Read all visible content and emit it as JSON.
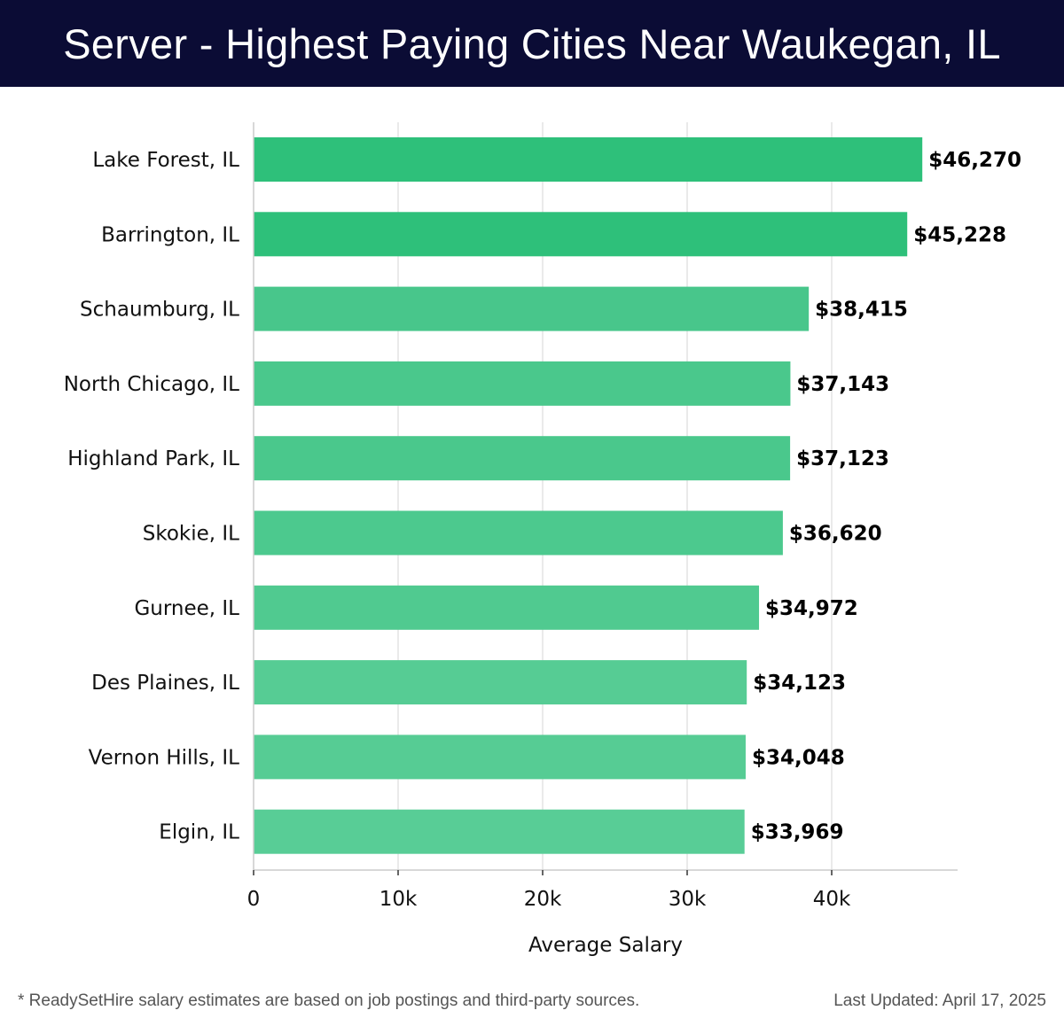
{
  "header": {
    "title": "Server - Highest Paying Cities Near Waukegan, IL"
  },
  "chart_data": {
    "type": "bar",
    "orientation": "horizontal",
    "title": "Server - Highest Paying Cities Near Waukegan, IL",
    "xlabel": "Average Salary",
    "ylabel": "",
    "xlim": [
      0,
      48700
    ],
    "x_ticks": [
      0,
      10000,
      20000,
      30000,
      40000
    ],
    "x_tick_labels": [
      "0",
      "10k",
      "20k",
      "30k",
      "40k"
    ],
    "grid": "vertical gridlines on",
    "categories": [
      "Lake Forest, IL",
      "Barrington, IL",
      "Schaumburg, IL",
      "North Chicago, IL",
      "Highland Park, IL",
      "Skokie, IL",
      "Gurnee, IL",
      "Des Plaines, IL",
      "Vernon Hills, IL",
      "Elgin, IL"
    ],
    "values": [
      46270,
      45228,
      38415,
      37143,
      37123,
      36620,
      34972,
      34123,
      34048,
      33969
    ],
    "value_labels": [
      "$46,270",
      "$45,228",
      "$38,415",
      "$37,143",
      "$37,123",
      "$36,620",
      "$34,972",
      "$34,123",
      "$34,048",
      "$33,969"
    ],
    "bar_colors": [
      "#2ec07a",
      "#2ec07a",
      "#48c68b",
      "#4ac88c",
      "#4ac88c",
      "#4cc98e",
      "#50ca90",
      "#56cc94",
      "#56cc94",
      "#58cd96"
    ]
  },
  "footer": {
    "note": "* ReadySetHire salary estimates are based on job postings and third-party sources.",
    "updated": "Last Updated: April 17, 2025"
  }
}
